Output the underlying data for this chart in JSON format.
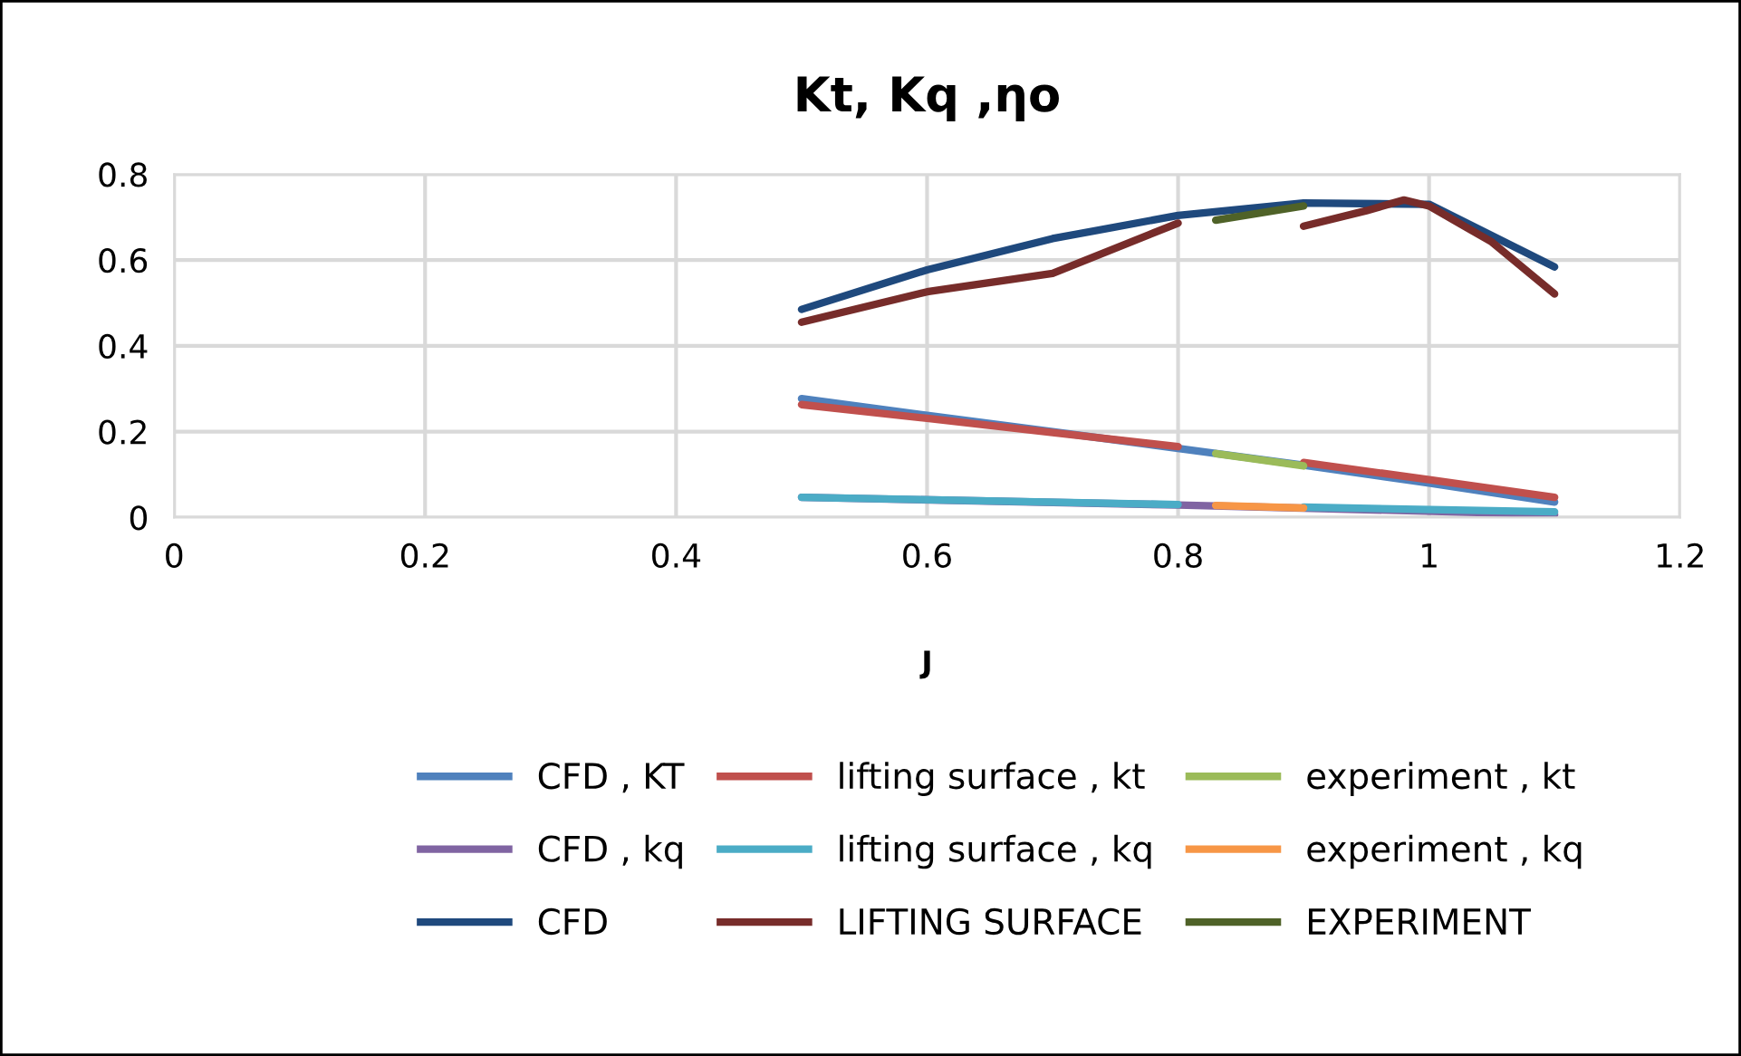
{
  "chart_data": {
    "type": "line",
    "title": "Kt, Kq ,ηo",
    "xlabel": "J",
    "xlim": [
      0,
      1.2
    ],
    "xticks": [
      0,
      0.2,
      0.4,
      0.6,
      0.8,
      1,
      1.2
    ],
    "ylim": [
      0,
      0.8
    ],
    "yticks": [
      0,
      0.2,
      0.4,
      0.6,
      0.8
    ],
    "grid": true,
    "legend": "bottom",
    "marker": "none",
    "line_style": "solid",
    "series": [
      {
        "name": "CFD , KT",
        "color": "#4f81bd",
        "x": [
          0.5,
          0.6,
          0.7,
          0.8,
          0.9,
          1.0,
          1.1
        ],
        "values": [
          0.277,
          0.238,
          0.2,
          0.161,
          0.122,
          0.08,
          0.036
        ]
      },
      {
        "name": "lifting surface , kt",
        "color": "#c0504d",
        "x": [
          0.5,
          0.6,
          0.7,
          0.8,
          null,
          0.9,
          1.0,
          1.1
        ],
        "values": [
          0.263,
          0.231,
          0.198,
          0.165,
          null,
          0.128,
          0.088,
          0.047
        ]
      },
      {
        "name": "experiment , kt",
        "color": "#9bbb59",
        "x": [
          0.83,
          0.9
        ],
        "values": [
          0.149,
          0.12
        ]
      },
      {
        "name": "CFD , kq",
        "color": "#8064a2",
        "x": [
          0.5,
          0.8,
          1.1
        ],
        "values": [
          0.047,
          0.029,
          0.007
        ]
      },
      {
        "name": "lifting surface , kq",
        "color": "#4bacc6",
        "x": [
          0.5,
          0.8,
          null,
          0.9,
          1.1
        ],
        "values": [
          0.047,
          0.03,
          null,
          0.024,
          0.013
        ]
      },
      {
        "name": "experiment , kq",
        "color": "#f79646",
        "x": [
          0.83,
          0.9
        ],
        "values": [
          0.028,
          0.022
        ]
      },
      {
        "name": "CFD",
        "color": "#1f497d",
        "x": [
          0.5,
          0.6,
          0.7,
          0.8,
          0.9,
          1.0,
          1.1
        ],
        "values": [
          0.485,
          0.577,
          0.65,
          0.704,
          0.733,
          0.73,
          0.584
        ]
      },
      {
        "name": "LIFTING SURFACE",
        "color": "#772c2a",
        "x": [
          0.5,
          0.6,
          0.7,
          0.8,
          null,
          0.9,
          0.95,
          0.98,
          1.0,
          1.05,
          1.1
        ],
        "values": [
          0.455,
          0.526,
          0.569,
          0.686,
          null,
          0.679,
          0.715,
          0.74,
          0.726,
          0.642,
          0.521
        ]
      },
      {
        "name": "EXPERIMENT",
        "color": "#4f6228",
        "x": [
          0.83,
          0.9
        ],
        "values": [
          0.693,
          0.726
        ]
      }
    ]
  }
}
